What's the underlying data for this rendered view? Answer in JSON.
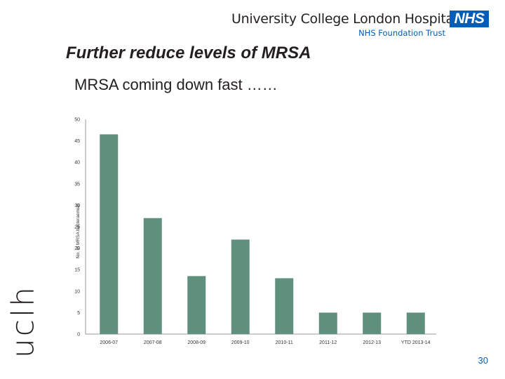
{
  "header": {
    "organization": "University College London Hospitals",
    "trust": "NHS Foundation Trust",
    "nhs_logo_text": "NHS",
    "nhs_color": "#005eb8"
  },
  "slide": {
    "title": "Further reduce levels of MRSA",
    "subtitle": "MRSA coming down fast ……",
    "side_logo_text": "uclh",
    "page_number": "30"
  },
  "chart_data": {
    "type": "bar",
    "title": "",
    "xlabel": "",
    "ylabel": "No. of MRSA bacteraemias",
    "categories": [
      "2006-07",
      "2007-08",
      "2008-09",
      "2009-10",
      "2010-11",
      "2011-12",
      "2012-13",
      "YTD 2013-14"
    ],
    "values": [
      46.5,
      27,
      13.5,
      22,
      13,
      5,
      5,
      5
    ],
    "ylim": [
      0,
      50
    ],
    "yticks": [
      0,
      5,
      10,
      15,
      20,
      25,
      30,
      35,
      40,
      45,
      50
    ],
    "bar_color": "#5f8f7d",
    "grid": false
  }
}
